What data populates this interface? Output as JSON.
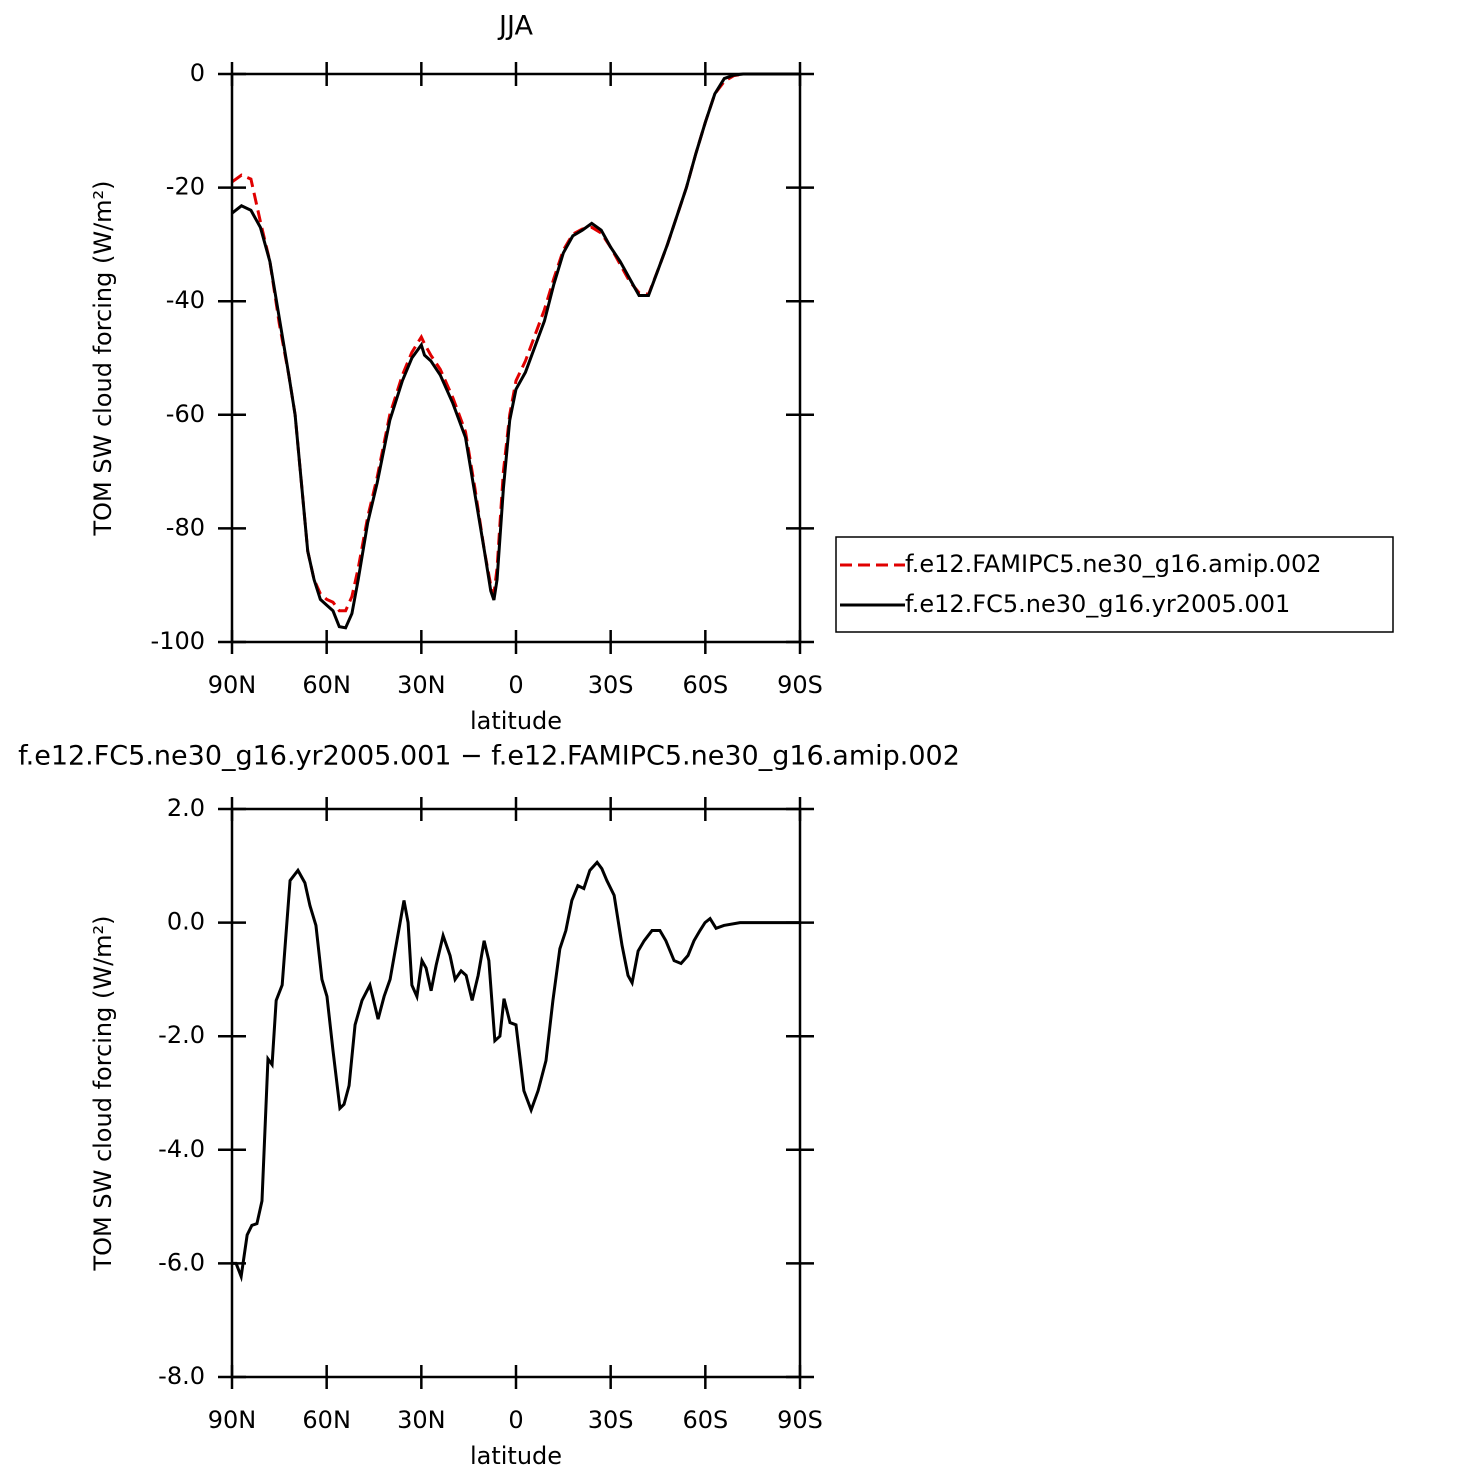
{
  "chart_data": [
    {
      "type": "line",
      "title": "JJA",
      "xlabel": "latitude",
      "ylabel": "TOM SW cloud forcing (W/m²)",
      "x": [
        90,
        87,
        84,
        81,
        78,
        75,
        72,
        70,
        68,
        66,
        64,
        62,
        60,
        58,
        56,
        54,
        52,
        50,
        47,
        44,
        40,
        36,
        33,
        30,
        29,
        27,
        24,
        20,
        16,
        13,
        10,
        8,
        7,
        6,
        4,
        2,
        0,
        -3,
        -6,
        -9,
        -12,
        -15,
        -18,
        -21,
        -24,
        -27,
        -30,
        -33,
        -36,
        -39,
        -42,
        -45,
        -48,
        -51,
        -54,
        -57,
        -60,
        -63,
        -66,
        -69,
        -72,
        -75,
        -80,
        -85,
        -90
      ],
      "series": [
        {
          "name": "f.e12.FAMIPC5.ne30_g16.amip.002",
          "color": "#e00000",
          "line_style": "dashed",
          "values": [
            -19,
            -17.8,
            -18.5,
            -26,
            -33,
            -44,
            -53,
            -60,
            -72,
            -84,
            -89,
            -91.5,
            -92.5,
            -93,
            -94.5,
            -94.5,
            -92,
            -87,
            -78,
            -71,
            -60,
            -53,
            -49,
            -46.3,
            -47.5,
            -49.5,
            -52,
            -57,
            -63,
            -73,
            -84,
            -90,
            -91.5,
            -87,
            -70,
            -60,
            -54,
            -50.5,
            -46,
            -41.5,
            -36,
            -31,
            -28.2,
            -27.3,
            -27,
            -28,
            -30.5,
            -33.5,
            -36.5,
            -38.5,
            -38.8,
            -34.5,
            -30,
            -25,
            -20,
            -14,
            -8.5,
            -3.5,
            -1.3,
            -0.3,
            0,
            0,
            0,
            0,
            0
          ]
        },
        {
          "name": "f.e12.FC5.ne30_g16.yr2005.001",
          "color": "#000000",
          "line_style": "solid",
          "values": [
            -24.5,
            -23.2,
            -24,
            -27,
            -33,
            -43,
            -53,
            -60,
            -72,
            -84,
            -89,
            -92.5,
            -93.5,
            -94.5,
            -97.3,
            -97.5,
            -95,
            -89,
            -79,
            -72,
            -61,
            -54,
            -50,
            -47.7,
            -49.5,
            -50.5,
            -53,
            -58,
            -64,
            -74,
            -84,
            -91,
            -92.6,
            -89,
            -73,
            -61,
            -55.5,
            -52.5,
            -48,
            -43.5,
            -37,
            -31.5,
            -28.5,
            -27.5,
            -26.3,
            -27.5,
            -30.5,
            -33,
            -36,
            -39,
            -39,
            -34.5,
            -30,
            -25,
            -20,
            -14,
            -8.5,
            -3.5,
            -0.8,
            -0.2,
            0,
            0,
            0,
            0,
            0
          ]
        }
      ],
      "xlim": [
        90,
        -90
      ],
      "xticks": [
        {
          "value": 90,
          "label": "90N"
        },
        {
          "value": 60,
          "label": "60N"
        },
        {
          "value": 30,
          "label": "30N"
        },
        0,
        {
          "value": -30,
          "label": "30S"
        },
        {
          "value": -60,
          "label": "60S"
        },
        {
          "value": -90,
          "label": "90S"
        }
      ],
      "ylim": [
        -100,
        0
      ],
      "yticks": [
        0,
        -20,
        -40,
        -60,
        -80,
        -100
      ],
      "legend_position": "right"
    },
    {
      "type": "line",
      "title": "f.e12.FC5.ne30_g16.yr2005.001 − f.e12.FAMIPC5.ne30_g16.amip.002",
      "xlabel": "latitude",
      "ylabel": "TOM SW cloud forcing (W/m²)",
      "x": [
        90,
        88.7,
        87.1,
        85.2,
        83.7,
        82.1,
        80.5,
        78.6,
        77.3,
        76.0,
        74.1,
        71.6,
        69.1,
        66.9,
        65.3,
        63.4,
        61.5,
        59.9,
        58.0,
        55.8,
        54.5,
        52.9,
        51.0,
        48.8,
        46.3,
        43.7,
        41.8,
        39.9,
        38.0,
        35.5,
        34.2,
        33.0,
        31.4,
        29.8,
        28.5,
        26.9,
        25.3,
        23.1,
        20.9,
        19.3,
        17.4,
        15.8,
        13.9,
        12.0,
        10.1,
        8.6,
        6.7,
        5.1,
        3.8,
        1.9,
        0,
        -2.5,
        -4.8,
        -7.0,
        -9.5,
        -11.7,
        -13.9,
        -15.8,
        -17.7,
        -19.6,
        -21.5,
        -23.4,
        -25.7,
        -27.2,
        -28.8,
        -31.1,
        -33.6,
        -35.5,
        -36.8,
        -38.7,
        -40.6,
        -43.1,
        -45.6,
        -47.5,
        -50.1,
        -52.3,
        -54.5,
        -56.4,
        -58.3,
        -59.9,
        -61.5,
        -63.4,
        -65.9,
        -71.0,
        -90
      ],
      "series": [
        {
          "name": "f.e12.FC5.ne30_g16.yr2005.001 − f.e12.FAMIPC5.ne30_g16.amip.002",
          "color": "#000000",
          "line_style": "solid",
          "values": [
            -6.0,
            -6.0,
            -6.23,
            -5.5,
            -5.33,
            -5.3,
            -4.9,
            -2.4,
            -2.5,
            -1.37,
            -1.1,
            0.74,
            0.92,
            0.7,
            0.3,
            -0.05,
            -1.0,
            -1.3,
            -2.25,
            -3.27,
            -3.2,
            -2.87,
            -1.8,
            -1.37,
            -1.1,
            -1.7,
            -1.3,
            -1.0,
            -0.4,
            0.39,
            0.0,
            -1.1,
            -1.3,
            -0.67,
            -0.8,
            -1.2,
            -0.75,
            -0.23,
            -0.58,
            -1.0,
            -0.85,
            -0.93,
            -1.37,
            -0.93,
            -0.32,
            -0.67,
            -2.08,
            -2.0,
            -1.34,
            -1.76,
            -1.8,
            -2.96,
            -3.3,
            -2.96,
            -2.43,
            -1.37,
            -0.46,
            -0.14,
            0.39,
            0.65,
            0.6,
            0.92,
            1.06,
            0.95,
            0.74,
            0.48,
            -0.4,
            -0.93,
            -1.06,
            -0.5,
            -0.32,
            -0.14,
            -0.14,
            -0.32,
            -0.67,
            -0.72,
            -0.58,
            -0.32,
            -0.14,
            0,
            0.07,
            -0.1,
            -0.05,
            0,
            0
          ]
        }
      ],
      "xlim": [
        90,
        -90
      ],
      "xticks": [
        {
          "value": 90,
          "label": "90N"
        },
        {
          "value": 60,
          "label": "60N"
        },
        {
          "value": 30,
          "label": "30N"
        },
        0,
        {
          "value": -30,
          "label": "30S"
        },
        {
          "value": -60,
          "label": "60S"
        },
        {
          "value": -90,
          "label": "90S"
        }
      ],
      "ylim": [
        -8,
        2
      ],
      "yticks": [
        {
          "value": 2,
          "label": "2.0"
        },
        {
          "value": 0,
          "label": "0.0"
        },
        {
          "value": -2,
          "label": "-2.0"
        },
        {
          "value": -4,
          "label": "-4.0"
        },
        {
          "value": -6,
          "label": "-6.0"
        },
        {
          "value": -8,
          "label": "-8.0"
        }
      ]
    }
  ]
}
